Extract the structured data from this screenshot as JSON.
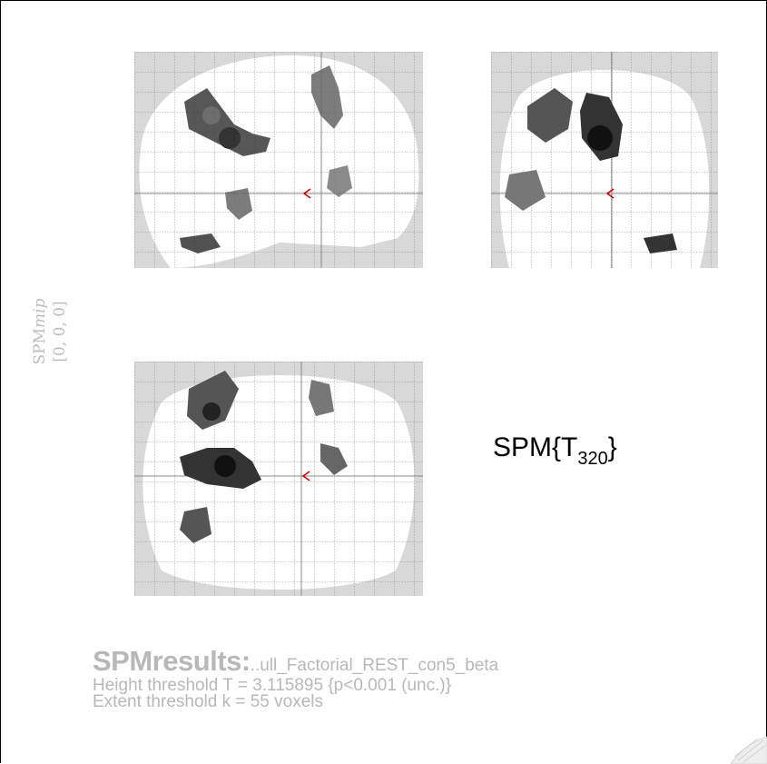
{
  "side_label": {
    "prefix": "SPM",
    "italic": "mip",
    "coords": "[0, 0, 0]"
  },
  "stat": {
    "base": "SPM{T",
    "subscript": "320",
    "close": "}"
  },
  "results": {
    "title": "SPMresults:",
    "name": "..ull_Factorial_REST_con5_beta",
    "height_threshold": "Height threshold T = 3.115895  {p<0.001 (unc.)}",
    "extent_threshold": "Extent threshold k = 55 voxels"
  },
  "colors": {
    "background": "#ffffff",
    "grid_fill": "#d8d8d8",
    "brain_fill": "#ffffff",
    "gray_text": "#b8b8b8",
    "crosshair_cursor": "#cc0000"
  }
}
